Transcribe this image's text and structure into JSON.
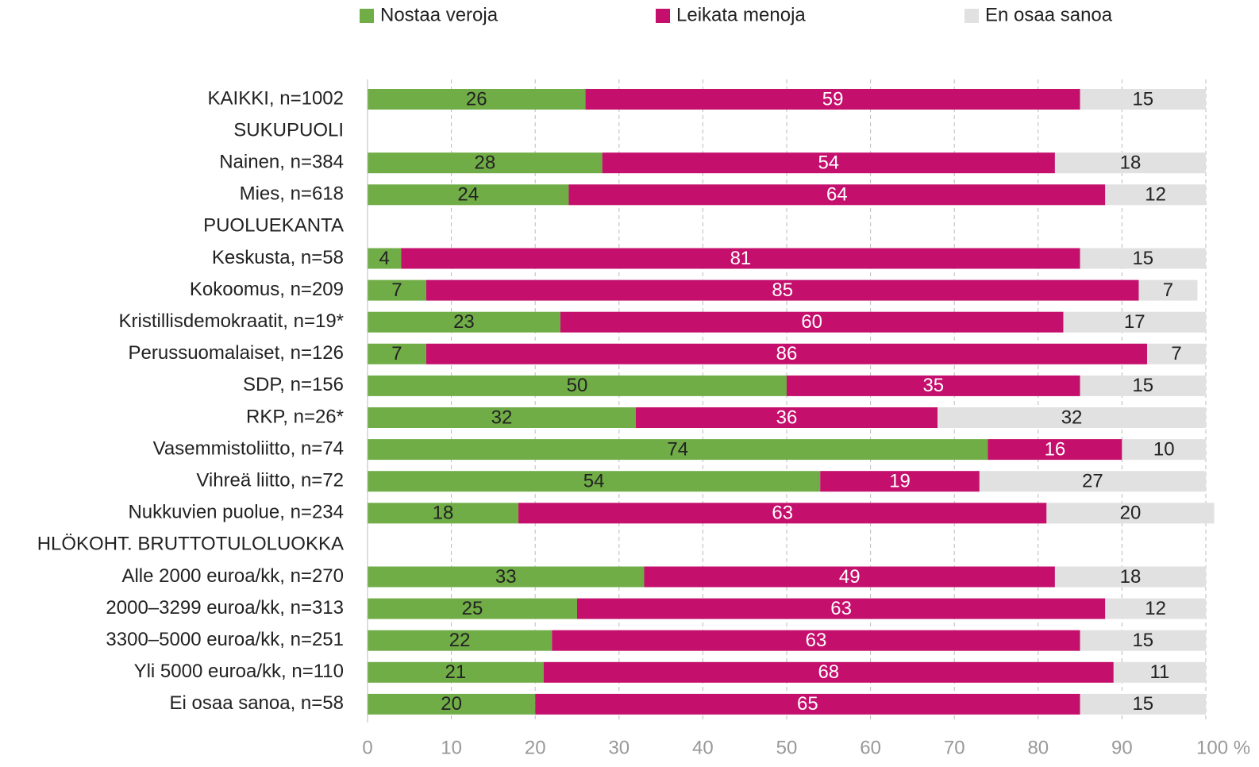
{
  "chart_data": {
    "type": "stacked_bar_horizontal",
    "categories": [
      "KAIKKI, n=1002",
      "SUKUPUOLI",
      "Nainen, n=384",
      "Mies, n=618",
      "PUOLUEKANTA",
      "Keskusta, n=58",
      "Kokoomus, n=209",
      "Kristillisdemokraatit, n=19*",
      "Perussuomalaiset, n=126",
      "SDP, n=156",
      "RKP, n=26*",
      "Vasemmistoliitto, n=74",
      "Vihreä liitto, n=72",
      "Nukkuvien puolue, n=234",
      "HLÖKOHT. BRUTTOTULOLUOKKA",
      "Alle 2000 euroa/kk, n=270",
      "2000–3299 euroa/kk, n=313",
      "3300–5000 euroa/kk, n=251",
      "Yli 5000 euroa/kk, n=110",
      "Ei osaa sanoa, n=58"
    ],
    "series": [
      {
        "name": "Nostaa veroja",
        "color": "#70ad47",
        "label_color": "#222222",
        "values": [
          26,
          null,
          28,
          24,
          null,
          4,
          7,
          23,
          7,
          50,
          32,
          74,
          54,
          18,
          null,
          33,
          25,
          22,
          21,
          20
        ]
      },
      {
        "name": "Leikata menoja",
        "color": "#c40f6c",
        "label_color": "#ffffff",
        "values": [
          59,
          null,
          54,
          64,
          null,
          81,
          85,
          60,
          86,
          35,
          36,
          16,
          19,
          63,
          null,
          49,
          63,
          63,
          68,
          65
        ]
      },
      {
        "name": "En osaa sanoa",
        "color": "#e1e1e1",
        "label_color": "#222222",
        "values": [
          15,
          null,
          18,
          12,
          null,
          15,
          7,
          17,
          7,
          15,
          32,
          10,
          27,
          20,
          null,
          18,
          12,
          15,
          11,
          15
        ]
      }
    ],
    "xlim": [
      0,
      100
    ],
    "xticks": [
      0,
      10,
      20,
      30,
      40,
      50,
      60,
      70,
      80,
      90,
      {
        "value": 100,
        "label": "100 %"
      }
    ],
    "grid": true,
    "legend": "top"
  }
}
